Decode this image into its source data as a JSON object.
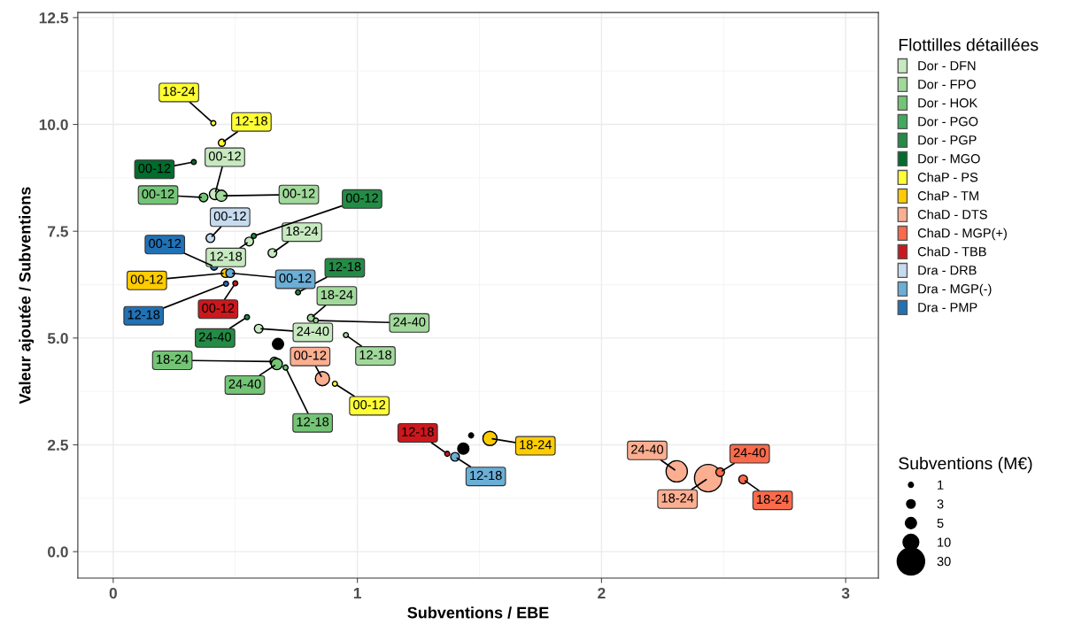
{
  "chart_data": {
    "type": "bubble",
    "xlabel": "Subventions / EBE",
    "ylabel": "Valeur ajoutée / Subventions",
    "legend_title": "Flottilles détaillées",
    "annotations": [
      "Subventions (M€)"
    ],
    "xlim": [
      -0.145,
      3.134
    ],
    "ylim": [
      -0.62,
      12.62
    ],
    "xticks": [
      0,
      1,
      2,
      3
    ],
    "yticks": [
      {
        "value": 0,
        "label": "0.0"
      },
      {
        "value": 2.5,
        "label": "2.5"
      },
      {
        "value": 5,
        "label": "5.0"
      },
      {
        "value": 7.5,
        "label": "7.5"
      },
      {
        "value": 10,
        "label": "10.0"
      },
      {
        "value": 12.5,
        "label": "12.5"
      }
    ],
    "grid": true,
    "legend": "right",
    "size_legend": [
      1,
      3,
      5,
      10,
      30
    ],
    "series": [
      {
        "name": "Dor - DFN",
        "color": "#c7e9c0",
        "x": [
          0.417,
          0.557,
          0.652,
          0.596
        ],
        "values": [
          8.37,
          7.26,
          6.99,
          5.22
        ],
        "sizes": [
          5,
          3,
          3,
          3
        ],
        "value_labels": [
          "00-12",
          "12-18",
          "18-24",
          "24-40"
        ]
      },
      {
        "name": "Dor - FPO",
        "color": "#a1d99b",
        "x": [
          0.443,
          0.81,
          0.83,
          0.953
        ],
        "values": [
          8.33,
          5.47,
          5.41,
          5.07
        ],
        "sizes": [
          5,
          2,
          1,
          1
        ],
        "value_labels": [
          "00-12",
          "18-24",
          "24-40",
          "12-18"
        ]
      },
      {
        "name": "Dor - HOK",
        "color": "#74c476",
        "x": [
          0.37,
          0.66,
          0.67,
          0.706
        ],
        "values": [
          8.29,
          4.45,
          4.39,
          4.31
        ],
        "sizes": [
          3,
          3,
          5,
          1
        ],
        "value_labels": [
          "00-12",
          "18-24",
          "24-40",
          "12-18"
        ]
      },
      {
        "name": "Dor - PGO",
        "color": "#41ab5d"
      },
      {
        "name": "Dor - PGP",
        "color": "#238b45",
        "x": [
          0.576,
          0.757,
          0.548
        ],
        "values": [
          7.39,
          6.07,
          5.49
        ],
        "sizes": [
          1,
          1,
          1
        ],
        "value_labels": [
          "00-12",
          "12-18",
          "24-40"
        ]
      },
      {
        "name": "Dor - MGO",
        "color": "#006d2c",
        "x": [
          0.33
        ],
        "values": [
          9.12
        ],
        "sizes": [
          1
        ],
        "value_labels": [
          "00-12"
        ]
      },
      {
        "name": "ChaP - PS",
        "color": "#ffff33",
        "x": [
          0.41,
          0.445,
          0.908
        ],
        "values": [
          10.03,
          9.57,
          3.93
        ],
        "sizes": [
          1,
          2,
          1
        ],
        "value_labels": [
          "18-24",
          "12-18",
          "00-12"
        ]
      },
      {
        "name": "ChaP - TM",
        "color": "#ffcc00",
        "x": [
          0.46,
          1.543
        ],
        "values": [
          6.52,
          2.65
        ],
        "sizes": [
          3,
          8
        ],
        "value_labels": [
          "00-12",
          "18-24"
        ]
      },
      {
        "name": "ChaD - DTS",
        "color": "#fcae91",
        "x": [
          0.857,
          2.308,
          2.437
        ],
        "values": [
          4.05,
          1.88,
          1.72
        ],
        "sizes": [
          8,
          18,
          30
        ],
        "value_labels": [
          "00-12",
          "24-40",
          "18-24"
        ]
      },
      {
        "name": "ChaD - MGP(+)",
        "color": "#fb6a4a",
        "x": [
          2.486,
          2.58
        ],
        "values": [
          1.86,
          1.69
        ],
        "sizes": [
          3,
          3
        ],
        "value_labels": [
          "24-40",
          "18-24"
        ]
      },
      {
        "name": "ChaD - TBB",
        "color": "#cb181d",
        "x": [
          0.5,
          1.368
        ],
        "values": [
          6.28,
          2.29
        ],
        "sizes": [
          1,
          1
        ],
        "value_labels": [
          "00-12",
          "12-18"
        ]
      },
      {
        "name": "Dra - DRB",
        "color": "#c6dbef",
        "x": [
          0.398
        ],
        "values": [
          7.34
        ],
        "sizes": [
          3
        ],
        "value_labels": [
          "00-12"
        ]
      },
      {
        "name": "Dra - MGP(-)",
        "color": "#6baed6",
        "x": [
          0.479,
          1.4
        ],
        "values": [
          6.52,
          2.22
        ],
        "sizes": [
          3,
          3
        ],
        "value_labels": [
          "00-12",
          "12-18"
        ]
      },
      {
        "name": "Dra - PMP",
        "color": "#2171b5",
        "x": [
          0.413,
          0.462
        ],
        "values": [
          6.67,
          6.27
        ],
        "sizes": [
          2,
          1
        ],
        "value_labels": [
          "00-12",
          "12-18"
        ]
      },
      {
        "color": "#000000",
        "x": [
          0.675,
          1.434,
          1.466
        ],
        "values": [
          4.86,
          2.41,
          2.72
        ],
        "sizes": [
          5,
          5,
          1
        ]
      }
    ]
  }
}
